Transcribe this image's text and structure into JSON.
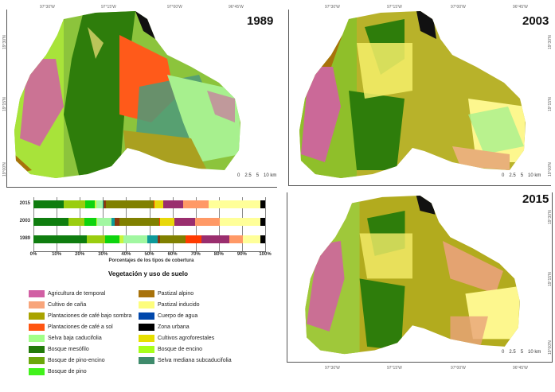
{
  "maps": [
    {
      "year": "1989",
      "coords_top": [
        "97°30'W",
        "97°15'W",
        "97°00'W",
        "96°45'W"
      ],
      "coords_left": [
        "19°30'N",
        "19°15'N",
        "19°00'N"
      ],
      "scale": {
        "labels": [
          "0",
          "2.5",
          "5",
          "10 km"
        ]
      }
    },
    {
      "year": "2003",
      "coords_top": [
        "97°30'W",
        "97°15'W",
        "97°00'W",
        "96°45'W"
      ],
      "coords_right": [
        "19°30'N",
        "19°15'N",
        "19°00'N"
      ],
      "scale": {
        "labels": [
          "0",
          "2.5",
          "5",
          "10 km"
        ]
      }
    },
    {
      "year": "2015",
      "coords_bottom": [
        "97°30'W",
        "97°15'W",
        "97°00'W",
        "96°45'W"
      ],
      "coords_right": [
        "19°30'N",
        "19°15'N",
        "19°00'N"
      ],
      "scale": {
        "labels": [
          "0",
          "2.5",
          "5",
          "10 km"
        ]
      }
    }
  ],
  "legend": {
    "title": "Vegetación y uso de suelo",
    "items": [
      {
        "label": "Agricultura de temporal",
        "color": "#d15fa4"
      },
      {
        "label": "Cultivo de caña",
        "color": "#f8a57b"
      },
      {
        "label": "Plantaciones de café bajo sombra",
        "color": "#a9a300"
      },
      {
        "label": "Plantaciones de café a sol",
        "color": "#ff5511"
      },
      {
        "label": "Selva baja caducifolia",
        "color": "#a1ff88"
      },
      {
        "label": "Bosque mesófilo",
        "color": "#237a0a"
      },
      {
        "label": "Bosque de pino-encino",
        "color": "#6ca70c"
      },
      {
        "label": "Bosque de pino",
        "color": "#41f21b"
      },
      {
        "label": "Pastizal alpino",
        "color": "#a8720b"
      },
      {
        "label": "Pastizal inducido",
        "color": "#fdfd7c"
      },
      {
        "label": "Cuerpo de agua",
        "color": "#0047ab"
      },
      {
        "label": "Zona urbana",
        "color": "#000000"
      },
      {
        "label": "Cultivos agroforestales",
        "color": "#e6df00"
      },
      {
        "label": "Bosque de encino",
        "color": "#a8ff1a"
      },
      {
        "label": "Selva mediana subcaducifolia",
        "color": "#3f8b6c"
      }
    ]
  },
  "chart_data": {
    "type": "bar",
    "orientation": "horizontal-stacked-100",
    "title": "",
    "xlabel": "Porcentajes de los tipos de cobertura",
    "ylabel": "",
    "categories": [
      "2015",
      "2003",
      "1989"
    ],
    "x_ticks": [
      "0%",
      "10%",
      "20%",
      "30%",
      "40%",
      "50%",
      "60%",
      "70%",
      "80%",
      "90%",
      "100%"
    ],
    "xlim": [
      0,
      100
    ],
    "grid": true,
    "series": [
      {
        "name": "Bosque mesófilo",
        "color": "#0f7d0f",
        "values": [
          13,
          15,
          23
        ]
      },
      {
        "name": "Bosque de pino-encino",
        "color": "#9acd0f",
        "values": [
          9.5,
          7,
          8
        ]
      },
      {
        "name": "Bosque de pino",
        "color": "#0ed40e",
        "values": [
          4,
          5,
          6
        ]
      },
      {
        "name": "Bosque de encino",
        "color": "#c8f53c",
        "values": [
          0.5,
          0.5,
          2
        ]
      },
      {
        "name": "Selva baja caducifolia",
        "color": "#a1f7a1",
        "values": [
          3,
          6,
          10
        ]
      },
      {
        "name": "Selva mediana subcaducifolia",
        "color": "#0e9a9a",
        "values": [
          0.3,
          1.5,
          4.5
        ]
      },
      {
        "name": "Pastizal alpino",
        "color": "#8b3a0e",
        "values": [
          1,
          2,
          1
        ]
      },
      {
        "name": "Plantaciones de café bajo sombra",
        "color": "#808000",
        "values": [
          20.5,
          17,
          11
        ]
      },
      {
        "name": "Plantaciones de café a sol",
        "color": "#ff3b00",
        "values": [
          0.3,
          0.5,
          7
        ]
      },
      {
        "name": "Cultivos agroforestales",
        "color": "#e8d80a",
        "values": [
          4,
          6,
          0
        ]
      },
      {
        "name": "Agricultura de temporal",
        "color": "#9a2e6e",
        "values": [
          8.4,
          9,
          12
        ]
      },
      {
        "name": "Cultivo de caña",
        "color": "#ff9966",
        "values": [
          11,
          10.5,
          6
        ]
      },
      {
        "name": "Pastizal inducido",
        "color": "#ffff99",
        "values": [
          22.5,
          17.5,
          7.5
        ]
      },
      {
        "name": "Zona urbana",
        "color": "#000000",
        "values": [
          2,
          2,
          2
        ]
      }
    ]
  }
}
